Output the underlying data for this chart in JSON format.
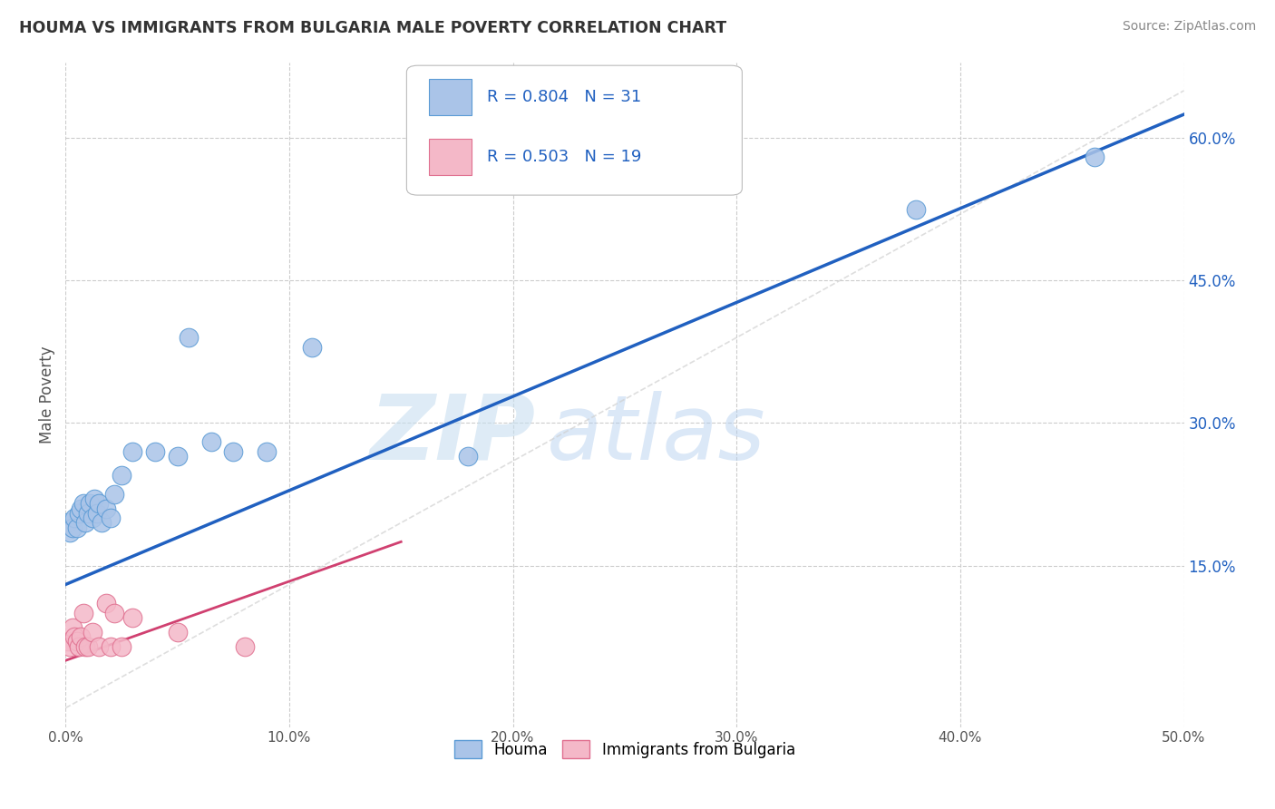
{
  "title": "HOUMA VS IMMIGRANTS FROM BULGARIA MALE POVERTY CORRELATION CHART",
  "source": "Source: ZipAtlas.com",
  "ylabel": "Male Poverty",
  "xlim": [
    0,
    0.5
  ],
  "ylim": [
    -0.02,
    0.68
  ],
  "xticks": [
    0.0,
    0.1,
    0.2,
    0.3,
    0.4,
    0.5
  ],
  "xticklabels": [
    "0.0%",
    "10.0%",
    "20.0%",
    "30.0%",
    "40.0%",
    "50.0%"
  ],
  "yticks": [
    0.15,
    0.3,
    0.45,
    0.6
  ],
  "yticklabels": [
    "15.0%",
    "30.0%",
    "45.0%",
    "60.0%"
  ],
  "background_color": "#ffffff",
  "grid_color": "#cccccc",
  "houma_color": "#aac4e8",
  "houma_edge_color": "#5b9bd5",
  "bulgaria_color": "#f4b8c8",
  "bulgaria_edge_color": "#e07090",
  "houma_R": 0.804,
  "houma_N": 31,
  "bulgaria_R": 0.503,
  "bulgaria_N": 19,
  "legend_R_color": "#2060c0",
  "houma_line_color": "#2060c0",
  "bulgaria_line_color": "#d04070",
  "ref_line_color": "#cccccc",
  "watermark_zip": "ZIP",
  "watermark_atlas": "atlas",
  "houma_x": [
    0.001,
    0.002,
    0.003,
    0.004,
    0.005,
    0.006,
    0.007,
    0.008,
    0.009,
    0.01,
    0.011,
    0.012,
    0.013,
    0.014,
    0.015,
    0.016,
    0.018,
    0.02,
    0.022,
    0.025,
    0.03,
    0.04,
    0.05,
    0.055,
    0.065,
    0.075,
    0.09,
    0.11,
    0.18,
    0.38,
    0.46
  ],
  "houma_y": [
    0.195,
    0.185,
    0.19,
    0.2,
    0.19,
    0.205,
    0.21,
    0.215,
    0.195,
    0.205,
    0.215,
    0.2,
    0.22,
    0.205,
    0.215,
    0.195,
    0.21,
    0.2,
    0.225,
    0.245,
    0.27,
    0.27,
    0.265,
    0.39,
    0.28,
    0.27,
    0.27,
    0.38,
    0.265,
    0.525,
    0.58
  ],
  "bulgaria_x": [
    0.001,
    0.002,
    0.003,
    0.004,
    0.005,
    0.006,
    0.007,
    0.008,
    0.009,
    0.01,
    0.012,
    0.015,
    0.018,
    0.02,
    0.022,
    0.025,
    0.03,
    0.05,
    0.08
  ],
  "bulgaria_y": [
    0.07,
    0.065,
    0.085,
    0.075,
    0.07,
    0.065,
    0.075,
    0.1,
    0.065,
    0.065,
    0.08,
    0.065,
    0.11,
    0.065,
    0.1,
    0.065,
    0.095,
    0.08,
    0.065
  ],
  "houma_trendline_x": [
    0.0,
    0.5
  ],
  "houma_trendline_y": [
    0.13,
    0.625
  ],
  "bulgaria_trendline_x": [
    0.0,
    0.15
  ],
  "bulgaria_trendline_y": [
    0.05,
    0.175
  ]
}
